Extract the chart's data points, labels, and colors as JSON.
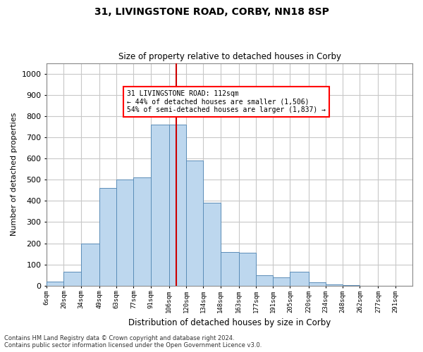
{
  "title1": "31, LIVINGSTONE ROAD, CORBY, NN18 8SP",
  "title2": "Size of property relative to detached houses in Corby",
  "xlabel": "Distribution of detached houses by size in Corby",
  "ylabel": "Number of detached properties",
  "footnote1": "Contains HM Land Registry data © Crown copyright and database right 2024.",
  "footnote2": "Contains public sector information licensed under the Open Government Licence v3.0.",
  "annotation_title": "31 LIVINGSTONE ROAD: 112sqm",
  "annotation_line1": "← 44% of detached houses are smaller (1,506)",
  "annotation_line2": "54% of semi-detached houses are larger (1,837) →",
  "bar_color": "#BDD7EE",
  "bar_edge_color": "#5B8DB8",
  "vline_color": "#CC0000",
  "vline_x": 112,
  "categories": [
    "6sqm",
    "20sqm",
    "34sqm",
    "49sqm",
    "63sqm",
    "77sqm",
    "91sqm",
    "106sqm",
    "120sqm",
    "134sqm",
    "148sqm",
    "163sqm",
    "177sqm",
    "191sqm",
    "205sqm",
    "220sqm",
    "234sqm",
    "248sqm",
    "262sqm",
    "277sqm",
    "291sqm"
  ],
  "bin_edges": [
    6,
    20,
    34,
    49,
    63,
    77,
    91,
    106,
    120,
    134,
    148,
    163,
    177,
    191,
    205,
    220,
    234,
    248,
    262,
    277,
    291
  ],
  "values": [
    20,
    65,
    200,
    460,
    500,
    510,
    760,
    760,
    590,
    390,
    160,
    155,
    50,
    40,
    65,
    15,
    5,
    2,
    1,
    0
  ],
  "ylim": [
    0,
    1050
  ],
  "yticks": [
    0,
    100,
    200,
    300,
    400,
    500,
    600,
    700,
    800,
    900,
    1000
  ],
  "background_color": "#FFFFFF",
  "grid_color": "#C8C8C8"
}
